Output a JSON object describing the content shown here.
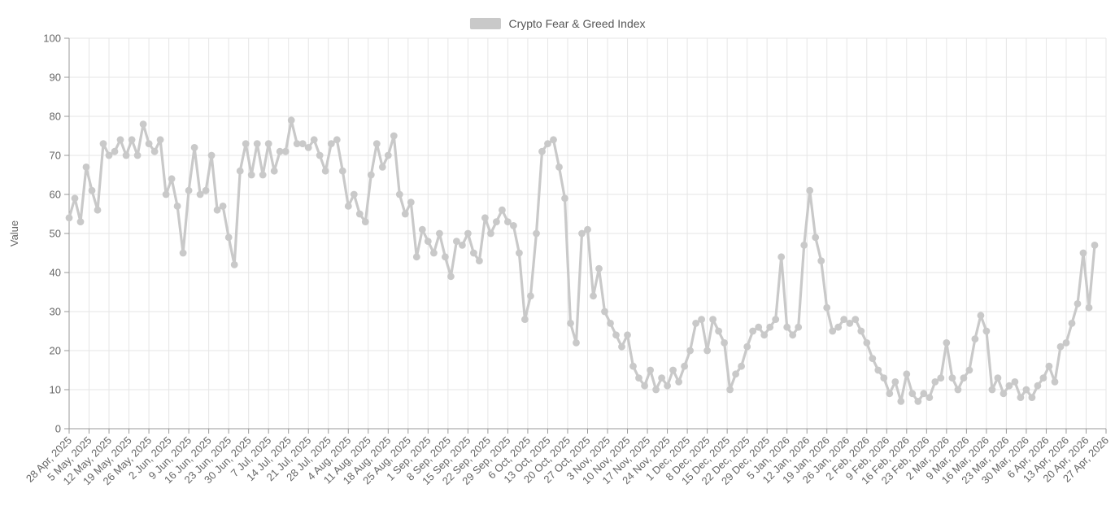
{
  "colors": {
    "series": "#c9c9c9",
    "grid": "#e6e6e6",
    "axis": "#999999",
    "text": "#666666",
    "background": "#ffffff"
  },
  "chart_data": {
    "type": "line",
    "title": "Crypto Fear & Greed Index",
    "xlabel": "",
    "ylabel": "Value",
    "ylim": [
      0,
      100
    ],
    "y_ticks": [
      0,
      10,
      20,
      30,
      40,
      50,
      60,
      70,
      80,
      90,
      100
    ],
    "grid": true,
    "legend_position": "top-center",
    "x_tick_labels": [
      "28 Apr, 2025",
      "5 May, 2025",
      "12 May, 2025",
      "19 May, 2025",
      "26 May, 2025",
      "2 Jun, 2025",
      "9 Jun, 2025",
      "16 Jun, 2025",
      "23 Jun, 2025",
      "30 Jun, 2025",
      "7 Jul, 2025",
      "14 Jul, 2025",
      "21 Jul, 2025",
      "28 Jul, 2025",
      "4 Aug, 2025",
      "11 Aug, 2025",
      "18 Aug, 2025",
      "25 Aug, 2025",
      "1 Sep, 2025",
      "8 Sep, 2025",
      "15 Sep, 2025",
      "22 Sep, 2025",
      "29 Sep, 2025",
      "6 Oct, 2025",
      "13 Oct, 2025",
      "20 Oct, 2025",
      "27 Oct, 2025",
      "3 Nov, 2025",
      "10 Nov, 2025",
      "17 Nov, 2025",
      "24 Nov, 2025",
      "1 Dec, 2025",
      "8 Dec, 2025",
      "15 Dec, 2025",
      "22 Dec, 2025",
      "29 Dec, 2025",
      "5 Jan, 2026",
      "12 Jan, 2026",
      "19 Jan, 2026",
      "26 Jan, 2026",
      "2 Feb, 2026",
      "9 Feb, 2026",
      "16 Feb, 2026",
      "23 Feb, 2026",
      "2 Mar, 2026",
      "9 Mar, 2026",
      "16 Mar, 2026",
      "23 Mar, 2026",
      "30 Mar, 2026",
      "6 Apr, 2026",
      "13 Apr, 2026",
      "20 Apr, 2026",
      "27 Apr, 2026"
    ],
    "x_range_days": [
      0,
      364
    ],
    "x_tick_interval_days": 7,
    "series": [
      {
        "name": "Crypto Fear & Greed Index",
        "color": "#c9c9c9",
        "marker": "circle",
        "point_interval_days": 2,
        "first_point_label": "28 Apr, 2025",
        "values": [
          54,
          59,
          53,
          67,
          61,
          56,
          73,
          70,
          71,
          74,
          70,
          74,
          70,
          78,
          73,
          71,
          74,
          60,
          64,
          57,
          45,
          61,
          72,
          60,
          61,
          70,
          56,
          57,
          49,
          42,
          66,
          73,
          65,
          73,
          65,
          73,
          66,
          71,
          71,
          79,
          73,
          73,
          72,
          74,
          70,
          66,
          73,
          74,
          66,
          57,
          60,
          55,
          53,
          65,
          73,
          67,
          70,
          75,
          60,
          55,
          58,
          44,
          51,
          48,
          45,
          50,
          44,
          39,
          48,
          47,
          50,
          45,
          43,
          54,
          50,
          53,
          56,
          53,
          52,
          45,
          28,
          34,
          50,
          71,
          73,
          74,
          67,
          59,
          27,
          22,
          50,
          51,
          34,
          41,
          30,
          27,
          24,
          21,
          24,
          16,
          13,
          11,
          15,
          10,
          13,
          11,
          15,
          12,
          16,
          20,
          27,
          28,
          20,
          28,
          25,
          22,
          10,
          14,
          16,
          21,
          25,
          26,
          24,
          26,
          28,
          44,
          26,
          24,
          26,
          47,
          61,
          49,
          43,
          31,
          25,
          26,
          28,
          27,
          28,
          25,
          22,
          18,
          15,
          13,
          9,
          12,
          7,
          14,
          9,
          7,
          9,
          8,
          12,
          13,
          22,
          13,
          10,
          13,
          15,
          23,
          29,
          25,
          10,
          13,
          9,
          11,
          12,
          8,
          10,
          8,
          11,
          13,
          16,
          12,
          21,
          22,
          27,
          32,
          45,
          31,
          47
        ]
      }
    ]
  }
}
